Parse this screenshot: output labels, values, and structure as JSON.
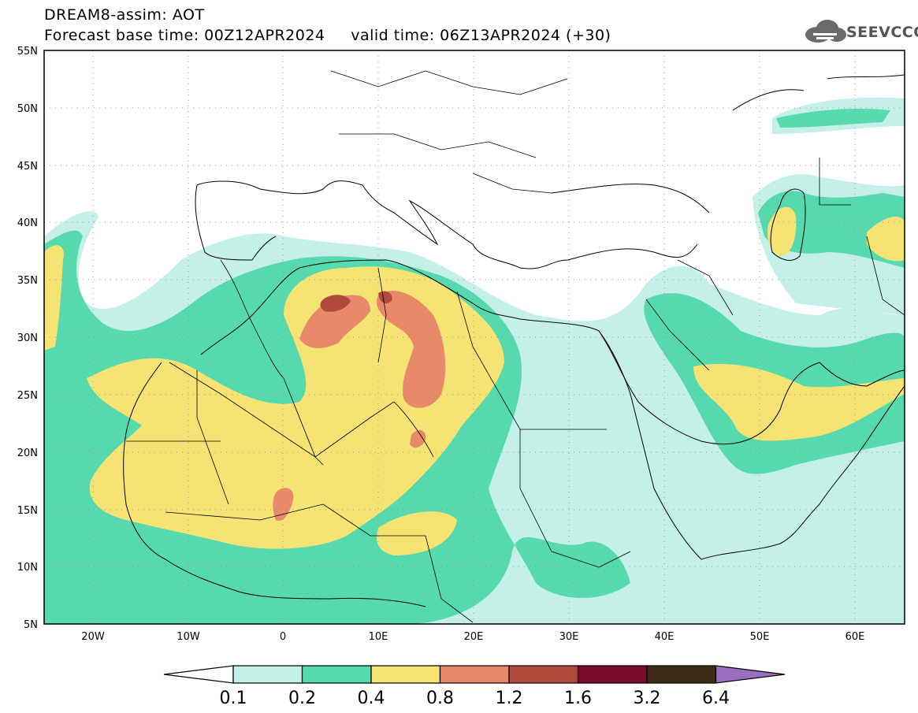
{
  "header": {
    "title": "DREAM8-assim: AOT",
    "base_time_label": "Forecast base time: 00Z12APR2024",
    "valid_time_label": "valid time: 06Z13APR2024 (+30)",
    "brand": "SEEVCCC"
  },
  "map": {
    "lon_ticks": [
      "20W",
      "10W",
      "0",
      "10E",
      "20E",
      "30E",
      "40E",
      "50E",
      "60E"
    ],
    "lat_ticks": [
      "55N",
      "50N",
      "45N",
      "40N",
      "35N",
      "30N",
      "25N",
      "20N",
      "15N",
      "10N",
      "5N"
    ],
    "lon_range": [
      -25,
      65
    ],
    "lat_range": [
      5,
      55
    ],
    "grid": "dotted"
  },
  "colorbar": {
    "labels": [
      "0.1",
      "0.2",
      "0.4",
      "0.8",
      "1.2",
      "1.6",
      "3.2",
      "6.4"
    ],
    "colors": [
      "#ffffff",
      "#c4f0e8",
      "#55d9ad",
      "#f5e373",
      "#e8896a",
      "#b24a3e",
      "#7a0a2a",
      "#3d2b1a",
      "#9b6fbf"
    ]
  }
}
